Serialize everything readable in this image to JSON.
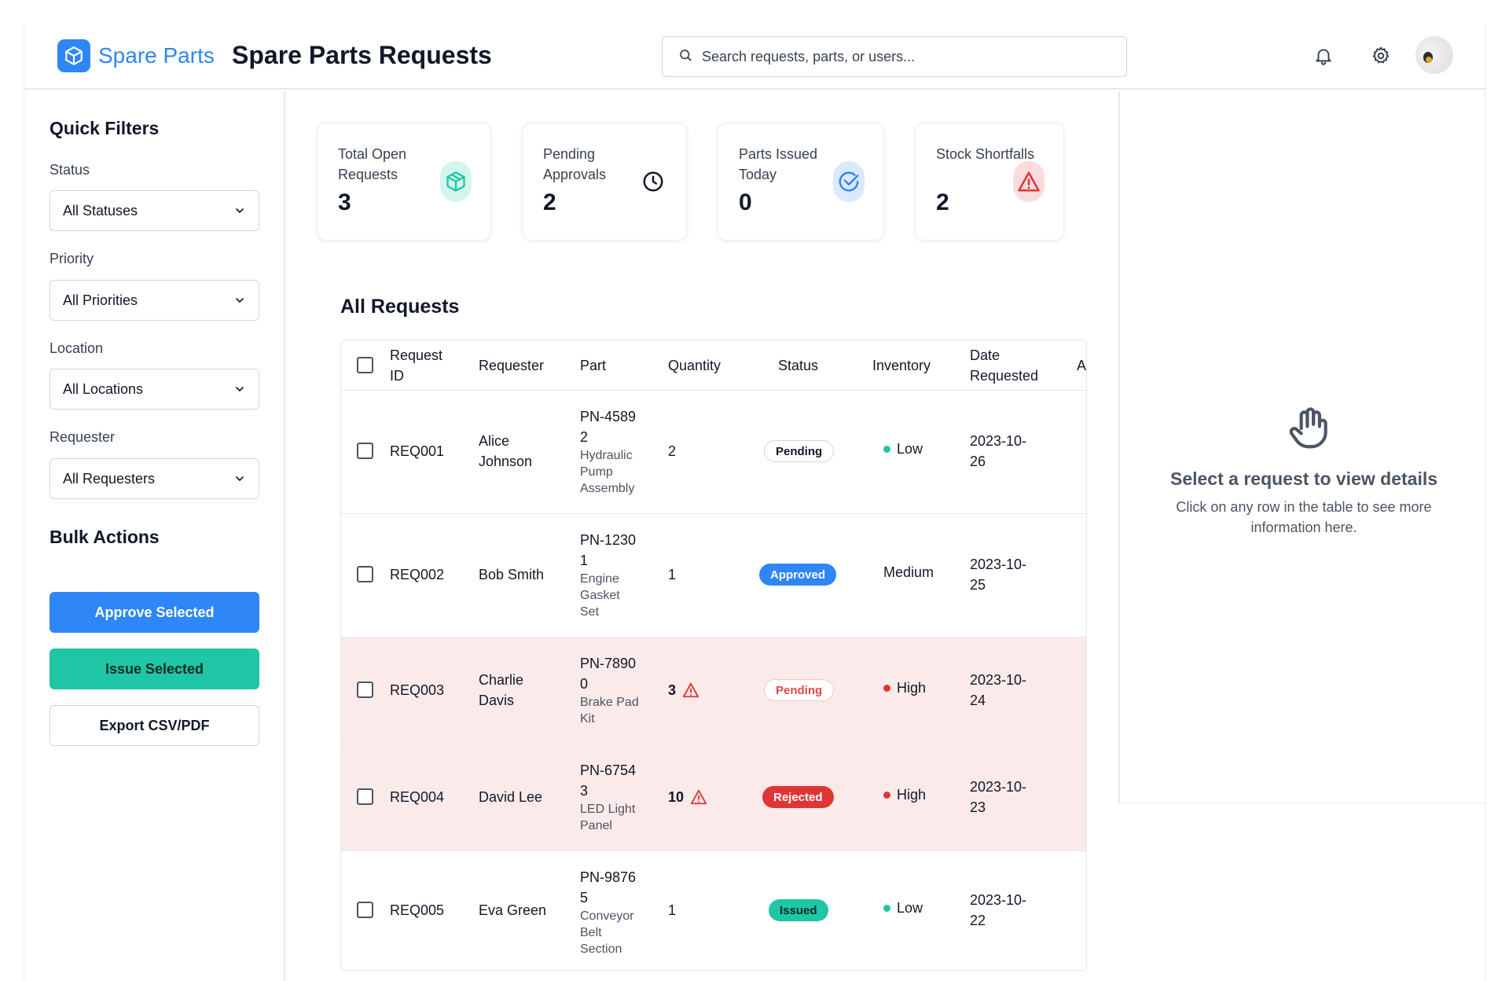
{
  "header": {
    "brand": "Spare Parts",
    "page_title": "Spare Parts Requests",
    "search_placeholder": "Search requests, parts, or users..."
  },
  "sidebar": {
    "quick_filters_title": "Quick Filters",
    "filters": [
      {
        "label": "Status",
        "value": "All Statuses"
      },
      {
        "label": "Priority",
        "value": "All Priorities"
      },
      {
        "label": "Location",
        "value": "All Locations"
      },
      {
        "label": "Requester",
        "value": "All Requesters"
      }
    ],
    "bulk_actions_title": "Bulk Actions",
    "approve_label": "Approve Selected",
    "issue_label": "Issue Selected",
    "export_label": "Export CSV/PDF"
  },
  "stats": [
    {
      "label": "Total Open Requests",
      "value": "3",
      "icon": "box-icon"
    },
    {
      "label": "Pending Approvals",
      "value": "2",
      "icon": "clock-icon"
    },
    {
      "label": "Parts Issued Today",
      "value": "0",
      "icon": "check-circle-icon"
    },
    {
      "label": "Stock Shortfalls",
      "value": "2",
      "icon": "warning-icon"
    }
  ],
  "requests": {
    "title": "All Requests",
    "columns": [
      "Request ID",
      "Requester",
      "Part",
      "Quantity",
      "Status",
      "Inventory",
      "Date Requested",
      "A"
    ],
    "rows": [
      {
        "id": "REQ001",
        "requester": "Alice Johnson",
        "part_number": "PN-45892",
        "part_name": "Hydraulic Pump Assembly",
        "quantity": "2",
        "status": "Pending",
        "inventory": "Low",
        "date": "2023-10-26"
      },
      {
        "id": "REQ002",
        "requester": "Bob Smith",
        "part_number": "PN-12301",
        "part_name": "Engine Gasket Set",
        "quantity": "1",
        "status": "Approved",
        "inventory": "Medium",
        "date": "2023-10-25"
      },
      {
        "id": "REQ003",
        "requester": "Charlie Davis",
        "part_number": "PN-78900",
        "part_name": "Brake Pad Kit",
        "quantity": "3",
        "status": "Pending",
        "inventory": "High",
        "date": "2023-10-24"
      },
      {
        "id": "REQ004",
        "requester": "David Lee",
        "part_number": "PN-67543",
        "part_name": "LED Light Panel",
        "quantity": "10",
        "status": "Rejected",
        "inventory": "High",
        "date": "2023-10-23"
      },
      {
        "id": "REQ005",
        "requester": "Eva Green",
        "part_number": "PN-98765",
        "part_name": "Conveyor Belt Section",
        "quantity": "1",
        "status": "Issued",
        "inventory": "Low",
        "date": "2023-10-22"
      }
    ]
  },
  "details": {
    "title": "Select a request to view details",
    "subtitle": "Click on any row in the table to see more information here."
  },
  "colors": {
    "primary": "#2f86f6",
    "teal": "#1fc6a6",
    "danger": "#e03535",
    "alert_row": "#fbeaea"
  }
}
